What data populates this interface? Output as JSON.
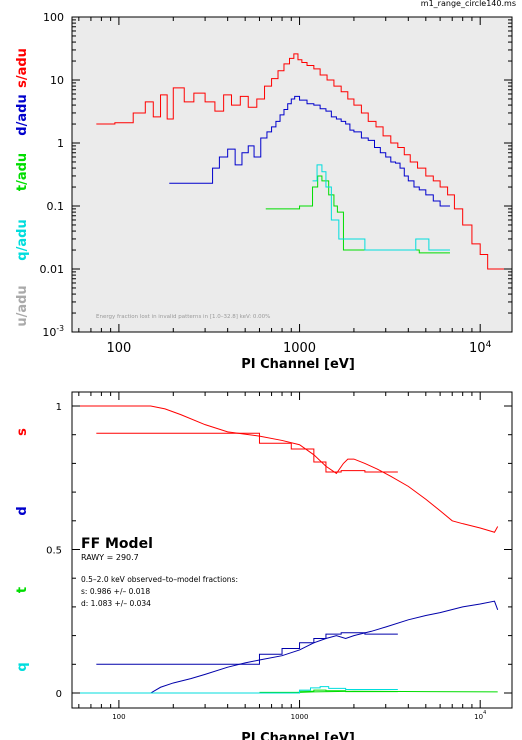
{
  "filename": "m1_range_circle140.ms",
  "chart_data": [
    {
      "type": "line",
      "xscale": "log",
      "yscale": "log",
      "xlim": [
        55,
        15000
      ],
      "ylim": [
        0.001,
        100
      ],
      "xlabel": "PI Channel [eV]",
      "x_ticks": [
        "100",
        "1000",
        "10^4"
      ],
      "y_ticks": [
        "100",
        "10",
        "1",
        "0.1",
        "0.01",
        "10^-3"
      ],
      "annotation": "Energy fraction lost in invalid patterns in [1.0–32.8] keV:  0.00%",
      "series": [
        {
          "name": "s/adu",
          "color": "#ff0000",
          "style": "step",
          "x": [
            75,
            95,
            120,
            140,
            155,
            170,
            185,
            200,
            230,
            260,
            300,
            340,
            380,
            420,
            470,
            520,
            580,
            640,
            700,
            760,
            820,
            880,
            930,
            980,
            1030,
            1100,
            1200,
            1300,
            1420,
            1550,
            1700,
            1850,
            2000,
            2200,
            2400,
            2650,
            2900,
            3200,
            3500,
            3800,
            4100,
            4500,
            5000,
            5500,
            6000,
            6600,
            7200,
            8000,
            9000,
            10000,
            11000,
            12000,
            15000
          ],
          "y": [
            2.0,
            2.1,
            3.0,
            4.5,
            2.6,
            5.8,
            2.4,
            7.5,
            4.5,
            6.2,
            4.5,
            3.2,
            5.8,
            4.0,
            5.5,
            3.7,
            5.0,
            8.0,
            10.5,
            14.0,
            18.0,
            22.0,
            26.0,
            21.0,
            19.0,
            17.0,
            15.0,
            12.0,
            10.0,
            8.0,
            6.5,
            5.0,
            4.0,
            3.0,
            2.2,
            1.8,
            1.3,
            1.0,
            0.85,
            0.65,
            0.5,
            0.4,
            0.3,
            0.25,
            0.2,
            0.15,
            0.09,
            0.05,
            0.025,
            0.017,
            0.01,
            0.01,
            0.01
          ]
        },
        {
          "name": "d/adu",
          "color": "#0000cc",
          "style": "step",
          "x": [
            190,
            300,
            330,
            360,
            400,
            440,
            480,
            520,
            560,
            610,
            660,
            700,
            740,
            780,
            820,
            860,
            900,
            940,
            1000,
            1100,
            1200,
            1300,
            1400,
            1500,
            1600,
            1700,
            1800,
            1900,
            2000,
            2200,
            2400,
            2600,
            2800,
            3000,
            3200,
            3400,
            3600,
            3800,
            4000,
            4300,
            4600,
            5000,
            5500,
            6000,
            6300
          ],
          "y": [
            0.23,
            0.23,
            0.4,
            0.6,
            0.8,
            0.45,
            0.7,
            0.9,
            0.6,
            1.2,
            1.5,
            1.8,
            2.2,
            2.8,
            3.4,
            4.2,
            5.0,
            5.5,
            4.8,
            4.2,
            4.0,
            3.5,
            3.2,
            2.6,
            2.4,
            2.2,
            2.0,
            1.6,
            1.5,
            1.2,
            1.1,
            0.85,
            0.7,
            0.6,
            0.5,
            0.48,
            0.4,
            0.3,
            0.25,
            0.2,
            0.18,
            0.15,
            0.12,
            0.1,
            0.1
          ]
        },
        {
          "name": "t/adu",
          "color": "#00dd00",
          "style": "step",
          "x": [
            650,
            1000,
            1180,
            1260,
            1330,
            1450,
            1550,
            1620,
            1750,
            2300,
            3000,
            3800,
            4600,
            5400,
            6300
          ],
          "y": [
            0.09,
            0.1,
            0.2,
            0.3,
            0.25,
            0.15,
            0.1,
            0.08,
            0.02,
            0.02,
            0.02,
            0.02,
            0.018,
            0.018,
            0.018
          ]
        },
        {
          "name": "q/adu",
          "color": "#00dddd",
          "style": "step",
          "x": [
            1180,
            1250,
            1330,
            1400,
            1500,
            1650,
            2300,
            3000,
            3800,
            4400,
            5200,
            6300
          ],
          "y": [
            0.25,
            0.45,
            0.35,
            0.2,
            0.06,
            0.03,
            0.02,
            0.02,
            0.02,
            0.03,
            0.02,
            0.02
          ]
        },
        {
          "name": "u/adu",
          "color": "#aaaaaa",
          "style": "step",
          "x": [],
          "y": []
        }
      ]
    },
    {
      "type": "line",
      "xscale": "log",
      "xlim": [
        55,
        15000
      ],
      "ylim": [
        0,
        1
      ],
      "xlabel": "PI Channel [eV]",
      "x_ticks": [
        "100",
        "1000",
        "10^4"
      ],
      "y_ticks": [
        "1",
        "0.5",
        "0"
      ],
      "legend_labels": [
        "s",
        "d",
        "t",
        "q"
      ],
      "model_title": "FF Model",
      "rawy": "RAWY = 290.7",
      "fractions_title": "0.5–2.0 keV observed–to–model fractions:",
      "fraction_s": "s: 0.986 +/– 0.018",
      "fraction_d": "d: 1.083 +/– 0.034",
      "series": [
        {
          "name": "s",
          "color": "#ff0000",
          "style": "line",
          "x": [
            55,
            150,
            180,
            220,
            300,
            400,
            600,
            800,
            1000,
            1200,
            1400,
            1600,
            1750,
            1850,
            2000,
            2300,
            2700,
            3200,
            4000,
            5000,
            6000,
            7000,
            8000,
            10000,
            12000,
            12500
          ],
          "y": [
            1.0,
            1.0,
            0.99,
            0.97,
            0.935,
            0.91,
            0.895,
            0.88,
            0.865,
            0.83,
            0.79,
            0.765,
            0.8,
            0.815,
            0.815,
            0.8,
            0.78,
            0.755,
            0.72,
            0.675,
            0.635,
            0.6,
            0.59,
            0.575,
            0.56,
            0.58
          ]
        },
        {
          "name": "s-observed",
          "color": "#ff0000",
          "style": "step",
          "x": [
            75,
            300,
            600,
            900,
            1200,
            1400,
            1700,
            2300,
            3500
          ],
          "y": [
            0.905,
            0.905,
            0.87,
            0.85,
            0.805,
            0.77,
            0.775,
            0.77,
            0.77
          ]
        },
        {
          "name": "d",
          "color": "#0000aa",
          "style": "line",
          "x": [
            55,
            150,
            170,
            200,
            250,
            300,
            400,
            500,
            600,
            800,
            1000,
            1200,
            1400,
            1600,
            1800,
            2000,
            2500,
            3000,
            4000,
            5000,
            6000,
            8000,
            10000,
            12000,
            12500
          ],
          "y": [
            0.0,
            0.0,
            0.02,
            0.035,
            0.05,
            0.065,
            0.09,
            0.105,
            0.115,
            0.13,
            0.15,
            0.175,
            0.19,
            0.2,
            0.19,
            0.2,
            0.215,
            0.23,
            0.255,
            0.27,
            0.28,
            0.3,
            0.31,
            0.32,
            0.29
          ]
        },
        {
          "name": "d-observed",
          "color": "#0000aa",
          "style": "step",
          "x": [
            75,
            300,
            600,
            800,
            1000,
            1200,
            1400,
            1700,
            2300,
            3500
          ],
          "y": [
            0.1,
            0.1,
            0.135,
            0.155,
            0.175,
            0.19,
            0.205,
            0.21,
            0.205,
            0.205
          ]
        },
        {
          "name": "t",
          "color": "#00dd00",
          "style": "line",
          "x": [
            55,
            800,
            1200,
            2000,
            5000,
            12500
          ],
          "y": [
            0.0,
            0.0,
            0.004,
            0.006,
            0.005,
            0.004
          ]
        },
        {
          "name": "t-observed",
          "color": "#00dd00",
          "style": "step",
          "x": [
            600,
            1000,
            1200,
            1400,
            1800,
            3500
          ],
          "y": [
            0.002,
            0.006,
            0.01,
            0.008,
            0.005,
            0.005
          ]
        },
        {
          "name": "q",
          "color": "#00dddd",
          "style": "step",
          "x": [
            55,
            1000,
            1150,
            1300,
            1450,
            1800,
            3500
          ],
          "y": [
            0.0,
            0.01,
            0.018,
            0.022,
            0.016,
            0.012,
            0.012
          ]
        }
      ]
    }
  ]
}
